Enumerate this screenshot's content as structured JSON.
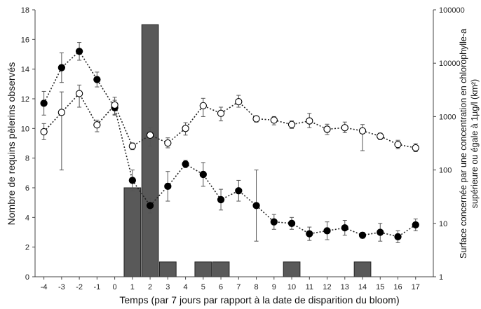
{
  "chart_data": {
    "type": "bar+line",
    "xlabel": "Temps (par 7 jours par rapport à la date de disparition du bloom)",
    "ylabel_left": "Nombre de requins pèlerins observés",
    "ylabel_right": [
      "Surface concernée par une concentration en chlorophylle-a",
      "supérieure ou égale à 1µg/l (km²)"
    ],
    "x": [
      -4,
      -3,
      -2,
      -1,
      0,
      1,
      2,
      3,
      4,
      5,
      6,
      7,
      8,
      9,
      10,
      11,
      12,
      13,
      14,
      15,
      16,
      17
    ],
    "ylim_left": [
      0,
      18
    ],
    "yticks_left": [
      0,
      2,
      4,
      6,
      8,
      10,
      12,
      14,
      16,
      18
    ],
    "ylim_right": [
      1,
      100000
    ],
    "yscale_right": "log",
    "yticks_right": [
      "1",
      "10",
      "100",
      "1000",
      "10000",
      "100000"
    ],
    "grid": false,
    "colors": {
      "bars": "#595959",
      "bar_edge": "#222222",
      "filled": "#000000",
      "open_fill": "#ffffff",
      "line": "#222222",
      "error": "#555555"
    },
    "series": [
      {
        "kind": "bar",
        "axis": "left",
        "values": [
          0,
          0,
          0,
          0,
          0,
          6,
          17,
          1,
          0,
          1,
          1,
          0,
          0,
          0,
          1,
          0,
          0,
          0,
          1,
          0,
          0,
          0
        ]
      },
      {
        "kind": "line",
        "axis": "left",
        "marker": "filled",
        "values": [
          11.7,
          14.1,
          15.2,
          13.3,
          11.4,
          6.5,
          4.8,
          6.1,
          7.6,
          6.9,
          5.2,
          5.8,
          4.8,
          3.7,
          3.6,
          2.9,
          3.1,
          3.3,
          2.8,
          3.0,
          2.7,
          3.5
        ],
        "error": [
          0.8,
          1.0,
          0.6,
          0.5,
          0.5,
          0.7,
          0.5,
          1.0,
          0.25,
          0.8,
          0.7,
          0.7,
          2.4,
          0.5,
          0.4,
          0.45,
          0.6,
          0.5,
          0.2,
          0.6,
          0.4,
          0.4
        ]
      },
      {
        "kind": "line",
        "axis": "right",
        "marker": "open",
        "values": [
          520,
          1200,
          2700,
          700,
          1650,
          280,
          450,
          320,
          600,
          1600,
          1150,
          1900,
          910,
          860,
          710,
          830,
          580,
          620,
          540,
          430,
          300,
          260
        ],
        "error_low": [
          370,
          100,
          1500,
          520,
          1100,
          240,
          280,
          260,
          450,
          1000,
          830,
          1500,
          790,
          700,
          600,
          620,
          460,
          500,
          230,
          370,
          250,
          220
        ],
        "error_high": [
          740,
          2900,
          3900,
          860,
          2300,
          320,
          630,
          400,
          770,
          2200,
          1500,
          2500,
          1000,
          1000,
          830,
          1150,
          720,
          790,
          710,
          490,
          360,
          310
        ]
      }
    ]
  }
}
